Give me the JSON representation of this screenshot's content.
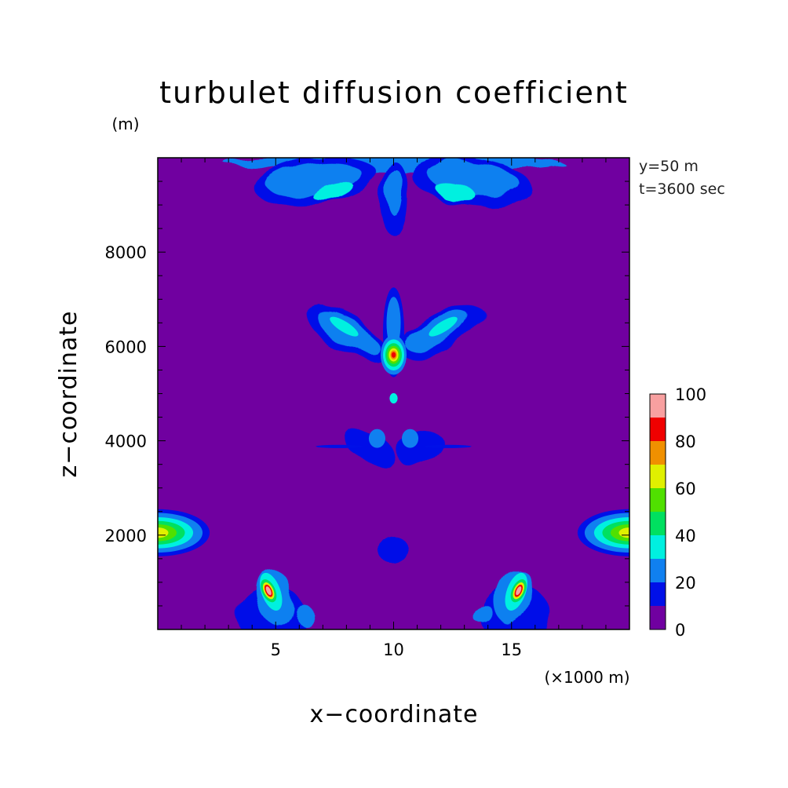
{
  "chart_data": {
    "type": "heatmap",
    "title": "turbulet diffusion coefficient",
    "xlabel": "x−coordinate",
    "ylabel": "z−coordinate",
    "x_unit_label": "(×1000 m)",
    "y_unit_label": "(m)",
    "annotations": [
      "y=50  m",
      "t=3600  sec"
    ],
    "xlim": [
      0,
      20
    ],
    "ylim": [
      0,
      10000
    ],
    "x_ticks": [
      5,
      10,
      15
    ],
    "x_tick_labels": [
      "5",
      "10",
      "15"
    ],
    "y_ticks": [
      2000,
      4000,
      6000,
      8000
    ],
    "y_tick_labels": [
      "2000",
      "4000",
      "6000",
      "8000"
    ],
    "colorbar": {
      "min": 0,
      "max": 100,
      "levels": [
        0,
        10,
        20,
        30,
        40,
        50,
        60,
        70,
        80,
        90,
        100
      ],
      "tick_values": [
        0,
        20,
        40,
        60,
        80,
        100
      ],
      "tick_labels": [
        "0",
        "20",
        "40",
        "60",
        "80",
        "100"
      ],
      "colors": [
        "#7000a0",
        "#0010e8",
        "#1080f0",
        "#00f0e0",
        "#00e060",
        "#50e000",
        "#e0f000",
        "#f09000",
        "#f00000",
        "#f8a0a0"
      ]
    },
    "features": [
      {
        "name": "upper-boundary-layer",
        "x": [
          3,
          17
        ],
        "z": [
          8300,
          9950
        ],
        "max_level": 40
      },
      {
        "name": "mid-wing-plumes",
        "x": [
          6.3,
          13.7
        ],
        "z": [
          5600,
          7200
        ],
        "max_level": 40
      },
      {
        "name": "core-maximum",
        "x": [
          10,
          10
        ],
        "z": [
          5800,
          5800
        ],
        "max_level": 90
      },
      {
        "name": "lower-wing-plumes",
        "x": [
          7.2,
          12.8
        ],
        "z": [
          3300,
          4400
        ],
        "max_level": 30
      },
      {
        "name": "left-edge-lobe",
        "x": [
          0,
          2.2
        ],
        "z": [
          1800,
          2800
        ],
        "max_level": 70
      },
      {
        "name": "right-edge-lobe",
        "x": [
          17.8,
          20
        ],
        "z": [
          1800,
          2800
        ],
        "max_level": 70
      },
      {
        "name": "central-blob",
        "x": [
          9.4,
          10.6
        ],
        "z": [
          1300,
          2000
        ],
        "max_level": 20
      },
      {
        "name": "left-surface-plume",
        "x": [
          3.8,
          6.6
        ],
        "z": [
          0,
          1250
        ],
        "max_level": 100
      },
      {
        "name": "right-surface-plume",
        "x": [
          13.4,
          16.2
        ],
        "z": [
          0,
          1250
        ],
        "max_level": 100
      }
    ]
  }
}
